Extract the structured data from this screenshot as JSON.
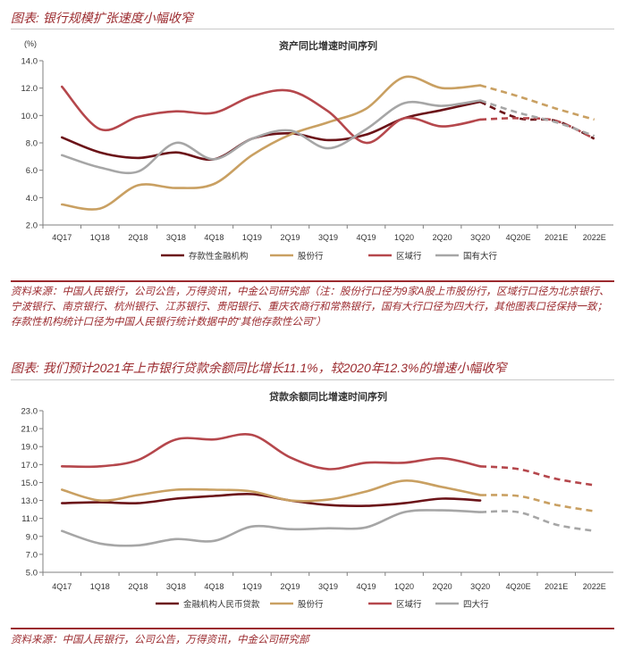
{
  "figures": [
    {
      "title": "图表: 银行规模扩张速度小幅收窄",
      "source": "资料来源：中国人民银行，公司公告，万得资讯，中金公司研究部（注：股份行口径为9家A股上市股份行，区域行口径为北京银行、宁波银行、南京银行、杭州银行、江苏银行、贵阳银行、重庆农商行和常熟银行，国有大行口径为四大行，其他图表口径保持一致；存款性机构统计口径为中国人民银行统计数据中的“其他存款性公司”）"
    },
    {
      "title": "图表: 我们预计2021年上市银行贷款余额同比增长11.1%，较2020年12.3%的增速小幅收窄",
      "source": "资料来源：中国人民银行，公司公告，万得资讯，中金公司研究部"
    }
  ],
  "colors": {
    "dark_red": "#6b1318",
    "gold": "#c9a062",
    "red": "#b5474c",
    "gray": "#a6a6a6",
    "accent": "#9b2a2e"
  },
  "chart_data": [
    {
      "type": "line",
      "title": "资产同比增速时间序列",
      "ylabel": "(%)",
      "ylim": [
        2.0,
        14.0
      ],
      "yticks": [
        "2.0",
        "4.0",
        "6.0",
        "8.0",
        "10.0",
        "12.0",
        "14.0"
      ],
      "categories": [
        "4Q17",
        "1Q18",
        "2Q18",
        "3Q18",
        "4Q18",
        "1Q19",
        "2Q19",
        "3Q19",
        "4Q19",
        "1Q20",
        "2Q20",
        "3Q20",
        "4Q20E",
        "2021E",
        "2022E"
      ],
      "forecast_start_index": 11,
      "series": [
        {
          "name": "存款性金融机构",
          "color": "#6b1318",
          "values": [
            8.4,
            7.3,
            6.9,
            7.3,
            6.8,
            8.3,
            8.7,
            8.2,
            8.6,
            9.8,
            10.4,
            11.0,
            9.8,
            9.6,
            8.3
          ]
        },
        {
          "name": "股份行",
          "color": "#c9a062",
          "values": [
            3.5,
            3.2,
            4.9,
            4.7,
            5.0,
            7.1,
            8.6,
            9.5,
            10.5,
            12.8,
            12.0,
            12.2,
            11.4,
            10.5,
            9.7
          ]
        },
        {
          "name": "区域行",
          "color": "#b5474c",
          "values": [
            12.1,
            9.0,
            9.9,
            10.3,
            10.2,
            11.4,
            11.8,
            10.3,
            8.0,
            9.8,
            9.2,
            9.7,
            9.8,
            9.6,
            8.3
          ]
        },
        {
          "name": "国有大行",
          "color": "#a6a6a6",
          "values": [
            7.1,
            6.2,
            5.9,
            8.0,
            6.8,
            8.3,
            8.9,
            7.6,
            9.0,
            10.9,
            10.7,
            11.1,
            10.2,
            9.5,
            8.5
          ]
        }
      ]
    },
    {
      "type": "line",
      "title": "贷款余额同比增速时间序列",
      "ylabel": "",
      "ylim": [
        5.0,
        23.0
      ],
      "yticks": [
        "5.0",
        "7.0",
        "9.0",
        "11.0",
        "13.0",
        "15.0",
        "17.0",
        "19.0",
        "21.0",
        "23.0"
      ],
      "categories": [
        "4Q17",
        "1Q18",
        "2Q18",
        "3Q18",
        "4Q18",
        "1Q19",
        "2Q19",
        "3Q19",
        "4Q19",
        "1Q20",
        "2Q20",
        "3Q20",
        "4Q20E",
        "2021E",
        "2022E"
      ],
      "forecast_start_index": 11,
      "series": [
        {
          "name": "金融机构人民币贷款",
          "color": "#6b1318",
          "values": [
            12.7,
            12.8,
            12.7,
            13.2,
            13.5,
            13.7,
            13.0,
            12.5,
            12.4,
            12.7,
            13.2,
            13.0,
            null,
            null,
            null
          ]
        },
        {
          "name": "股份行",
          "color": "#c9a062",
          "values": [
            14.2,
            13.0,
            13.6,
            14.2,
            14.2,
            14.0,
            13.0,
            13.1,
            14.0,
            15.2,
            14.5,
            13.6,
            13.5,
            12.5,
            11.8
          ]
        },
        {
          "name": "区域行",
          "color": "#b5474c",
          "values": [
            16.8,
            16.8,
            17.5,
            19.8,
            19.8,
            20.3,
            17.8,
            16.5,
            17.2,
            17.2,
            17.7,
            16.8,
            16.5,
            15.4,
            14.7
          ]
        },
        {
          "name": "四大行",
          "color": "#a6a6a6",
          "values": [
            9.6,
            8.2,
            8.0,
            8.7,
            8.5,
            10.1,
            9.8,
            9.9,
            10.0,
            11.7,
            11.9,
            11.7,
            11.7,
            10.3,
            9.6
          ]
        }
      ]
    }
  ]
}
